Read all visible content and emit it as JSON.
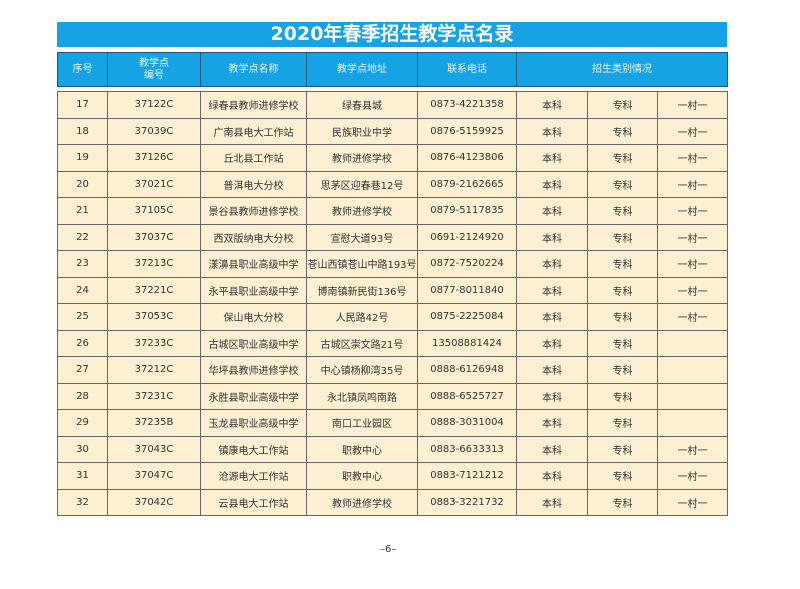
{
  "title": "2020年春季招生教学点名录",
  "headers": [
    "序号",
    "教学点编号",
    "教学点名称",
    "教学点地址",
    "联系电话",
    "招生类别情况"
  ],
  "rows": [
    [
      "17",
      "37122C",
      "绿春县教师进修学校",
      "绿春县城",
      "0873-4221358",
      "本科",
      "专科",
      "一村一"
    ],
    [
      "18",
      "37039C",
      "广南县电大工作站",
      "民族职业中学",
      "0876-5159925",
      "本科",
      "专科",
      "一村一"
    ],
    [
      "19",
      "37126C",
      "丘北县工作站",
      "教师进修学校",
      "0876-4123806",
      "本科",
      "专科",
      "一村一"
    ],
    [
      "20",
      "37021C",
      "普洱电大分校",
      "思茅区迎春巷12号",
      "0879-2162665",
      "本科",
      "专科",
      "一村一"
    ],
    [
      "21",
      "37105C",
      "景谷县教师进修学校",
      "教师进修学校",
      "0879-5117835",
      "本科",
      "专科",
      "一村一"
    ],
    [
      "22",
      "37037C",
      "西双版纳电大分校",
      "宣慰大道93号",
      "0691-2124920",
      "本科",
      "专科",
      "一村一"
    ],
    [
      "23",
      "37213C",
      "漾濞县职业高级中学",
      "苍山西镇苍山中路193号",
      "0872-7520224",
      "本科",
      "专科",
      "一村一"
    ],
    [
      "24",
      "37221C",
      "永平县职业高级中学",
      "博南镇新民街136号",
      "0877-8011840",
      "本科",
      "专科",
      "一村一"
    ],
    [
      "25",
      "37053C",
      "保山电大分校",
      "人民路42号",
      "0875-2225084",
      "本科",
      "专科",
      "一村一"
    ],
    [
      "26",
      "37233C",
      "古城区职业高级中学",
      "古城区崇文路21号",
      "13508881424",
      "本科",
      "专科",
      ""
    ],
    [
      "27",
      "37212C",
      "华坪县教师进修学校",
      "中心镇杨柳湾35号",
      "0888-6126948",
      "本科",
      "专科",
      ""
    ],
    [
      "28",
      "37231C",
      "永胜县职业高级中学",
      "永北镇凤鸣南路",
      "0888-6525727",
      "本科",
      "专科",
      ""
    ],
    [
      "29",
      "37235B",
      "玉龙县职业高级中学",
      "南口工业园区",
      "0888-3031004",
      "本科",
      "专科",
      ""
    ],
    [
      "30",
      "37043C",
      "镇康电大工作站",
      "职教中心",
      "0883-6633313",
      "本科",
      "专科",
      "一村一"
    ],
    [
      "31",
      "37047C",
      "沧源电大工作站",
      "职教中心",
      "0883-7121212",
      "本科",
      "专科",
      "一村一"
    ],
    [
      "32",
      "37042C",
      "云县电大工作站",
      "教师进修学校",
      "0883-3221732",
      "本科",
      "专科",
      "一村一"
    ]
  ],
  "page_number": "–6–"
}
